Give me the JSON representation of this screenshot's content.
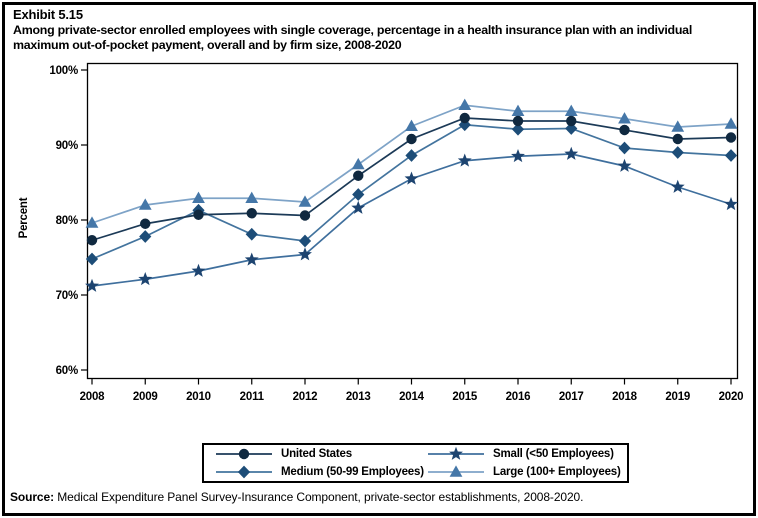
{
  "header": {
    "exhibit_label": "Exhibit 5.15",
    "title": "Among private-sector enrolled employees with single coverage, percentage in a health insurance plan with an individual maximum out-of-pocket payment, overall and by firm size, 2008-2020"
  },
  "source": {
    "label": "Source:",
    "text": " Medical Expenditure Panel Survey-Insurance Component, private-sector establishments, 2008-2020."
  },
  "chart_data": {
    "type": "line",
    "title": "",
    "xlabel": "",
    "ylabel": "Percent",
    "ylim": [
      60,
      100
    ],
    "grid": false,
    "plot_frame": true,
    "legend_position": "bottom-center",
    "yticks": [
      {
        "value": 100,
        "label": "100%"
      },
      {
        "value": 90,
        "label": "90%"
      },
      {
        "value": 80,
        "label": "80%"
      },
      {
        "value": 70,
        "label": "70%"
      },
      {
        "value": 60,
        "label": "60%"
      }
    ],
    "categories": [
      "2008",
      "2009",
      "2010",
      "2011",
      "2012",
      "2013",
      "2014",
      "2015",
      "2016",
      "2017",
      "2018",
      "2019",
      "2020"
    ],
    "series": [
      {
        "name": "United States",
        "marker": "circle",
        "marker_color": "#102940",
        "line_color": "#1c3a57",
        "values": [
          77.3,
          79.5,
          80.7,
          80.9,
          80.6,
          85.9,
          90.8,
          93.6,
          93.2,
          93.2,
          92.0,
          90.8,
          91.0
        ]
      },
      {
        "name": "Medium (50-99 Employees)",
        "marker": "diamond",
        "marker_color": "#1d4d78",
        "line_color": "#43749e",
        "values": [
          74.8,
          77.8,
          81.3,
          78.1,
          77.2,
          83.4,
          88.6,
          92.7,
          92.1,
          92.2,
          89.6,
          89.0,
          88.6
        ]
      },
      {
        "name": "Small (<50 Employees)",
        "marker": "star",
        "marker_color": "#1d4470",
        "line_color": "#3f6f9d",
        "values": [
          71.2,
          72.1,
          73.2,
          74.7,
          75.4,
          81.6,
          85.5,
          87.9,
          88.5,
          88.8,
          87.2,
          84.4,
          82.1
        ]
      },
      {
        "name": "Large (100+ Employees)",
        "marker": "triangle",
        "marker_color": "#4577a8",
        "line_color": "#7ea3c7",
        "values": [
          79.6,
          82.0,
          82.9,
          82.9,
          82.4,
          87.4,
          92.5,
          95.3,
          94.5,
          94.5,
          93.5,
          92.4,
          92.8
        ]
      }
    ],
    "legend_order": [
      "United States",
      "Small (<50 Employees)",
      "Medium (50-99 Employees)",
      "Large (100+ Employees)"
    ]
  }
}
